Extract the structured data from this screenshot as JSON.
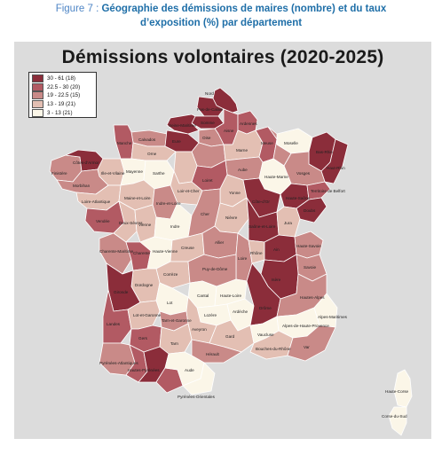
{
  "caption": {
    "prefix": "Figure 7 :",
    "line1": "Géographie des démissions de maires (nombre) et du taux",
    "line2": "d’exposition (%) par département"
  },
  "map": {
    "title": "Démissions volontaires (2020-2025)",
    "legend": [
      {
        "label": "30 - 61 (18)",
        "color": "#8b2d3a"
      },
      {
        "label": "22.5 - 30 (20)",
        "color": "#b25a63"
      },
      {
        "label": "19 - 22.5 (15)",
        "color": "#c98a88"
      },
      {
        "label": "13 - 19 (21)",
        "color": "#e3bfb3"
      },
      {
        "label": "3 - 13 (21)",
        "color": "#fbf6e8"
      }
    ],
    "labels": {
      "seine_maritime": "Seine-Maritime",
      "pas_de_calais": "Pas-de-Calais",
      "nord": "Nord",
      "somme": "Somme",
      "aisne": "Aisne",
      "ardennes": "Ardennes",
      "oise": "Oise",
      "calvados": "Calvados",
      "eure": "Eure",
      "marne": "Marne",
      "manche": "Manche",
      "meuse": "Meuse",
      "moselle": "Moselle",
      "bas_rhin": "Bas-Rhin",
      "cotes_armor": "Côtes-d’Armor",
      "finistere": "Finistère",
      "ille_vilaine": "Ille-et-Vilaine",
      "morbihan": "Morbihan",
      "orne": "Orne",
      "mayenne": "Mayenne",
      "sarthe": "Sarthe",
      "aube": "Aube",
      "haute_marne": "Haute-Marne",
      "vosges": "Vosges",
      "haut_rhin": "Haut-Rhin",
      "loiret": "Loiret",
      "yonne": "Yonne",
      "loire_atlantique": "Loire-Atlantique",
      "maine_loire": "Maine-et-Loire",
      "indre_loire": "Indre-et-Loire",
      "loir_cher": "Loir-et-Cher",
      "cote_or": "Côte-d’Or",
      "haute_saone": "Haute-Saône",
      "territoire_belfort": "Territoire de Belfort",
      "doubs": "Doubs",
      "vendee": "Vendée",
      "deux_sevres": "Deux-Sèvres",
      "vienne": "Vienne",
      "indre": "Indre",
      "cher": "Cher",
      "nievre": "Nièvre",
      "saone_loire": "Saône-et-Loire",
      "jura": "Jura",
      "charente_maritime": "Charente-Maritime",
      "charente": "Charente",
      "haute_vienne": "Haute-Vienne",
      "creuse": "Creuse",
      "allier": "Allier",
      "puy_de_dome": "Puy-de-Dôme",
      "loire": "Loire",
      "rhone": "Rhône",
      "ain": "Ain",
      "haute_savoie": "Haute-Savoie",
      "savoie": "Savoie",
      "correze": "Corrèze",
      "cantal": "Cantal",
      "haute_loire": "Haute-Loire",
      "isere": "Isère",
      "dordogne": "Dordogne",
      "gironde": "Gironde",
      "lot": "Lot",
      "lozere": "Lozère",
      "ardeche": "Ardèche",
      "drome": "Drôme",
      "hautes_alpes": "Hautes-Alpes",
      "lot_garonne": "Lot-et-Garonne",
      "tarn_garonne": "Tarn-et-Garonne",
      "aveyron": "Aveyron",
      "gard": "Gard",
      "vaucluse": "Vaucluse",
      "alpes_hp": "Alpes-de-Haute-Provence",
      "alpes_maritimes": "Alpes-Maritimes",
      "landes": "Landes",
      "gers": "Gers",
      "tarn": "Tarn",
      "herault": "Hérault",
      "bouches_rhone": "Bouches-du-Rhône",
      "var": "Var",
      "pyrenees_atlantiques": "Pyrénées-Atlantiques",
      "hautes_pyrenees": "Hautes-Pyrénées",
      "aude": "Aude",
      "pyrenees_orientales": "Pyrénées-Orientales",
      "haute_corse": "Haute-Corse",
      "corse_du_sud": "Corse-du-Sud"
    }
  }
}
